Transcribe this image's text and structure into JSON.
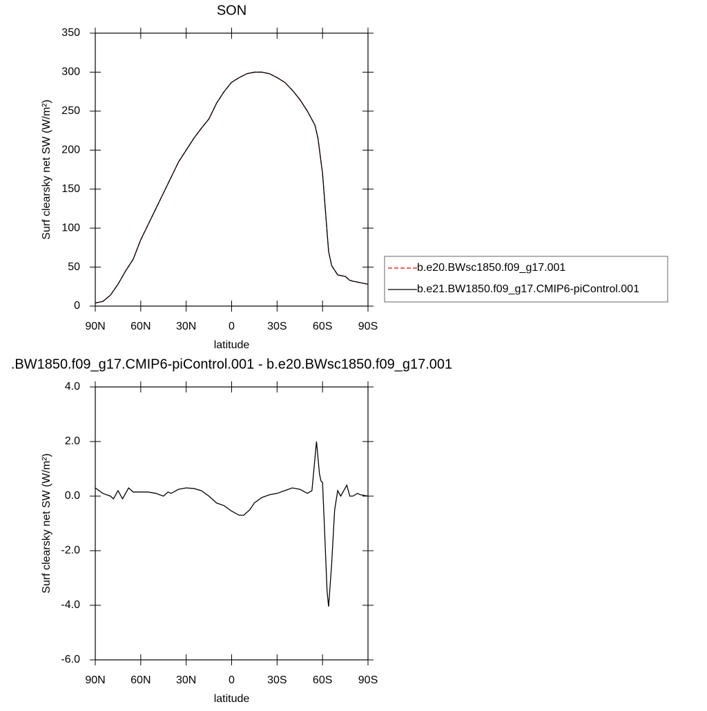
{
  "chart_data": [
    {
      "type": "line",
      "title": "SON",
      "xlabel": "latitude",
      "ylabel": "Surf clearsky net SW (W/m²)",
      "xlim": [
        90,
        -90
      ],
      "xticks": [
        {
          "value": 90,
          "label": "90N"
        },
        {
          "value": 60,
          "label": "60N"
        },
        {
          "value": 30,
          "label": "30N"
        },
        0,
        {
          "value": -30,
          "label": "30S"
        },
        {
          "value": -60,
          "label": "60S"
        },
        {
          "value": -90,
          "label": "90S"
        }
      ],
      "ylim": [
        0,
        350
      ],
      "yticks": [
        0,
        50,
        100,
        150,
        200,
        250,
        300,
        350
      ],
      "x": [
        90,
        85,
        80,
        75,
        70,
        65,
        60,
        55,
        50,
        45,
        40,
        35,
        30,
        25,
        20,
        15,
        10,
        5,
        0,
        -5,
        -10,
        -15,
        -20,
        -25,
        -30,
        -35,
        -40,
        -45,
        -50,
        -55,
        -57,
        -60,
        -62,
        -64,
        -66,
        -70,
        -75,
        -78,
        -80,
        -85,
        -90
      ],
      "series": [
        {
          "name": "b.e20.BWsc1850.f09_g17.001",
          "color": "#ff0000",
          "line_style": "dashed",
          "values": [
            4,
            6,
            14,
            28,
            45,
            60,
            85,
            105,
            125,
            145,
            165,
            185,
            200,
            215,
            228,
            240,
            260,
            275,
            287,
            293,
            298,
            300,
            300,
            298,
            293,
            287,
            277,
            265,
            250,
            232,
            215,
            170,
            120,
            70,
            52,
            40,
            38,
            33,
            32,
            30,
            28
          ]
        },
        {
          "name": "b.e21.BW1850.f09_g17.CMIP6-piControl.001",
          "color": "#000000",
          "line_style": "solid",
          "values": [
            4,
            6,
            14,
            28,
            45,
            60,
            85,
            105,
            125,
            145,
            165,
            185,
            200,
            215,
            228,
            240,
            260,
            275,
            287,
            293,
            298,
            300,
            300,
            298,
            293,
            287,
            277,
            265,
            250,
            232,
            215,
            170,
            120,
            70,
            52,
            40,
            38,
            33,
            32,
            30,
            28
          ]
        }
      ]
    },
    {
      "type": "line",
      "title": ".BW1850.f09_g17.CMIP6-piControl.001 - b.e20.BWsc1850.f09_g17.001",
      "xlabel": "latitude",
      "ylabel": "Surf clearsky net SW (W/m²)",
      "xlim": [
        90,
        -90
      ],
      "xticks": [
        {
          "value": 90,
          "label": "90N"
        },
        {
          "value": 60,
          "label": "60N"
        },
        {
          "value": 30,
          "label": "30N"
        },
        0,
        {
          "value": -30,
          "label": "30S"
        },
        {
          "value": -60,
          "label": "60S"
        },
        {
          "value": -90,
          "label": "90S"
        }
      ],
      "ylim": [
        -6,
        4
      ],
      "yticks": [
        {
          "value": -6,
          "label": "-6.0"
        },
        {
          "value": -4,
          "label": "-4.0"
        },
        {
          "value": -2,
          "label": "-2.0"
        },
        {
          "value": 0,
          "label": "0.0"
        },
        {
          "value": 2,
          "label": "2.0"
        },
        {
          "value": 4,
          "label": "4.0"
        }
      ],
      "x": [
        90,
        85,
        80,
        78,
        75,
        72,
        68,
        65,
        60,
        55,
        50,
        45,
        42,
        40,
        35,
        30,
        25,
        20,
        15,
        10,
        5,
        0,
        -5,
        -8,
        -12,
        -15,
        -20,
        -25,
        -30,
        -35,
        -40,
        -45,
        -50,
        -53,
        -56,
        -58,
        -59,
        -60,
        -61,
        -63,
        -64,
        -66,
        -68,
        -70,
        -72,
        -75,
        -76,
        -78,
        -80,
        -83,
        -85,
        -90
      ],
      "series": [
        {
          "color": "#000000",
          "line_style": "solid",
          "values": [
            0.3,
            0.1,
            0.0,
            -0.1,
            0.2,
            -0.1,
            0.3,
            0.15,
            0.15,
            0.15,
            0.1,
            0.0,
            0.15,
            0.1,
            0.25,
            0.3,
            0.28,
            0.2,
            0.0,
            -0.25,
            -0.35,
            -0.55,
            -0.7,
            -0.7,
            -0.5,
            -0.25,
            -0.05,
            0.05,
            0.1,
            0.2,
            0.3,
            0.25,
            0.1,
            0.2,
            2.0,
            0.8,
            0.55,
            0.5,
            -0.8,
            -3.5,
            -4.05,
            -2.5,
            -0.5,
            0.2,
            0.0,
            0.3,
            0.4,
            0.0,
            0.0,
            0.1,
            0.05,
            0.0
          ]
        }
      ]
    }
  ]
}
